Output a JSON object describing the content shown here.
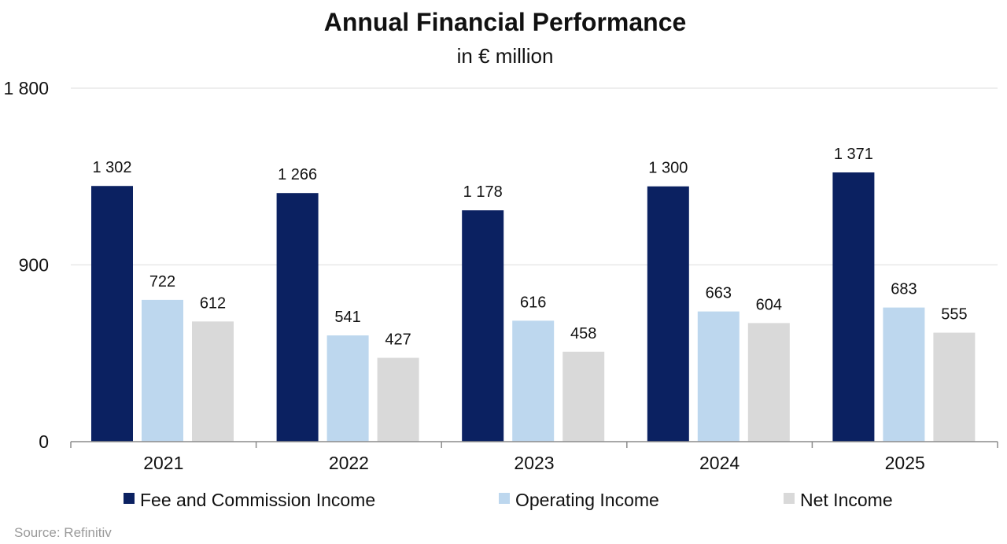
{
  "chart_data": {
    "type": "bar",
    "title": "Annual Financial Performance",
    "subtitle": "in € million",
    "categories": [
      "2021",
      "2022",
      "2023",
      "2024",
      "2025"
    ],
    "series": [
      {
        "name": "Fee and Commission Income",
        "color": "#0b2161",
        "values": [
          1302,
          1266,
          1178,
          1300,
          1371
        ],
        "labels": [
          "1 302",
          "1 266",
          "1 178",
          "1 300",
          "1 371"
        ]
      },
      {
        "name": "Operating Income",
        "color": "#bdd7ee",
        "values": [
          722,
          541,
          616,
          663,
          683
        ],
        "labels": [
          "722",
          "541",
          "616",
          "663",
          "683"
        ]
      },
      {
        "name": "Net Income",
        "color": "#d9d9d9",
        "values": [
          612,
          427,
          458,
          604,
          555
        ],
        "labels": [
          "612",
          "427",
          "458",
          "604",
          "555"
        ]
      }
    ],
    "ylim": [
      0,
      1800
    ],
    "yticks": [
      0,
      900,
      1800
    ],
    "ytick_labels": [
      "0",
      "900",
      "1 800"
    ],
    "xlabel": "",
    "ylabel": "",
    "grid": true,
    "legend": "bottom",
    "source": "Source: Refinitiv"
  }
}
